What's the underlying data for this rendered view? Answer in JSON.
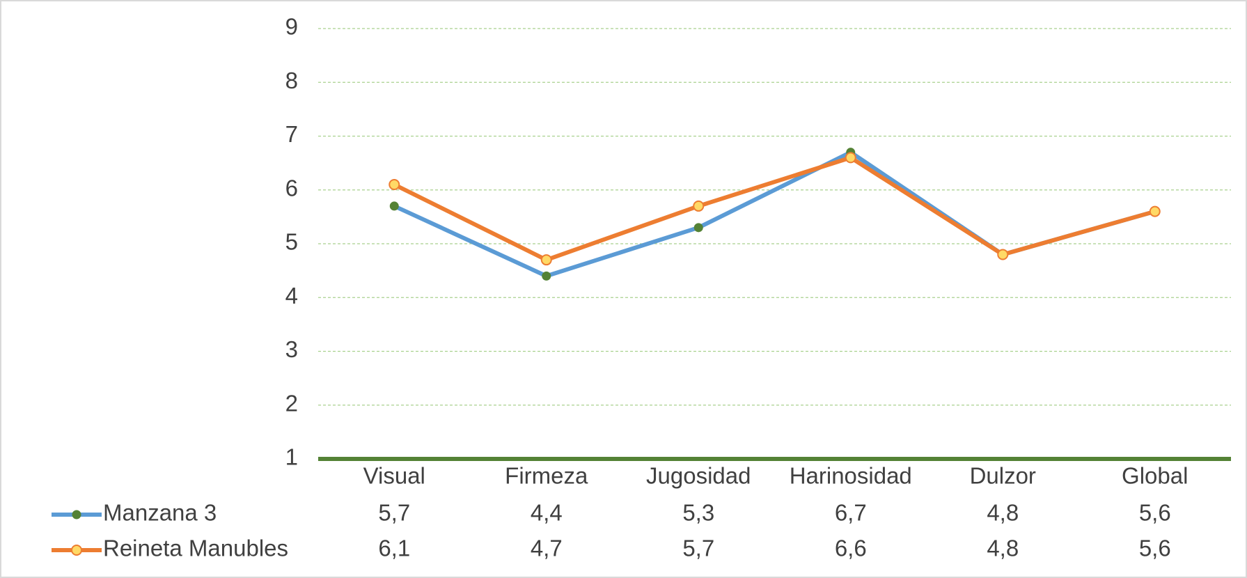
{
  "chart_data": {
    "type": "line",
    "categories": [
      "Visual",
      "Firmeza",
      "Jugosidad",
      "Harinosidad",
      "Dulzor",
      "Global"
    ],
    "series": [
      {
        "name": "Manzana 3",
        "color": "#5b9bd5",
        "marker_color": "#548235",
        "values": [
          5.7,
          4.4,
          5.3,
          6.7,
          4.8,
          5.6
        ],
        "value_labels": [
          "5,7",
          "4,4",
          "5,3",
          "6,7",
          "4,8",
          "5,6"
        ]
      },
      {
        "name": "Reineta Manubles",
        "color": "#ed7d31",
        "marker_color": "#ffd966",
        "values": [
          6.1,
          4.7,
          5.7,
          6.6,
          4.8,
          5.6
        ],
        "value_labels": [
          "6,1",
          "4,7",
          "5,7",
          "6,6",
          "4,8",
          "5,6"
        ]
      }
    ],
    "ylim": [
      1,
      9
    ],
    "yticks": [
      1,
      2,
      3,
      4,
      5,
      6,
      7,
      8,
      9
    ],
    "grid": true,
    "data_table": true
  }
}
